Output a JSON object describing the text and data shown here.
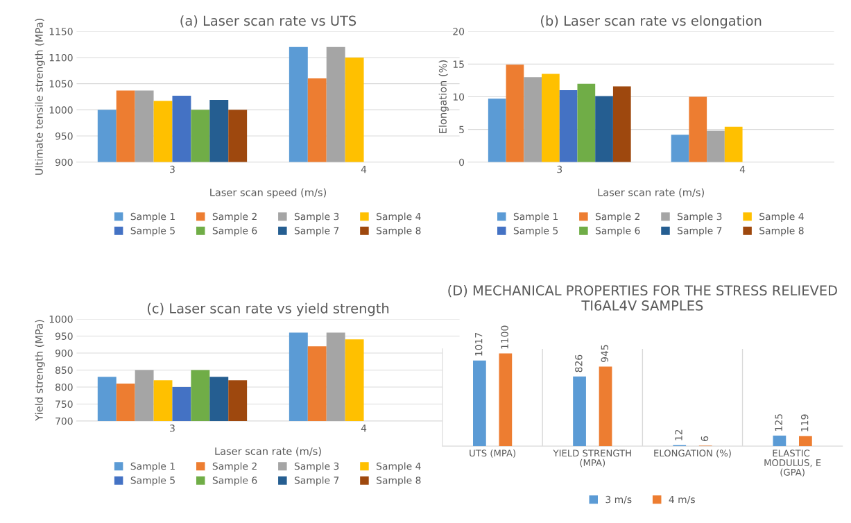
{
  "chart_data": [
    {
      "type": "bar",
      "title": "(a) Laser scan rate vs UTS",
      "xlabel": "Laser scan speed (m/s)",
      "ylabel": "Ultimate tensile strength (MPa)",
      "categories": [
        "3",
        "4"
      ],
      "ylim": [
        900,
        1150
      ],
      "yticks": [
        900,
        950,
        1000,
        1050,
        1100,
        1150
      ],
      "grid": "y",
      "legend": "bottom",
      "series": [
        {
          "name": "Sample 1",
          "color": "#5b9bd5",
          "values": [
            1000,
            1120
          ]
        },
        {
          "name": "Sample 2",
          "color": "#ed7d31",
          "values": [
            1037,
            1060
          ]
        },
        {
          "name": "Sample 3",
          "color": "#a5a5a5",
          "values": [
            1037,
            1120
          ]
        },
        {
          "name": "Sample 4",
          "color": "#ffc000",
          "values": [
            1017,
            1100
          ]
        },
        {
          "name": "Sample 5",
          "color": "#4472c4",
          "values": [
            1027,
            null
          ]
        },
        {
          "name": "Sample 6",
          "color": "#70ad47",
          "values": [
            1000,
            null
          ]
        },
        {
          "name": "Sample 7",
          "color": "#255e91",
          "values": [
            1019,
            null
          ]
        },
        {
          "name": "Sample 8",
          "color": "#9e480e",
          "values": [
            1000,
            null
          ]
        }
      ]
    },
    {
      "type": "bar",
      "title": "(b) Laser scan rate vs elongation",
      "xlabel": "Laser scan rate (m/s)",
      "ylabel": "Elongation (%)",
      "categories": [
        "3",
        "4"
      ],
      "ylim": [
        0,
        20
      ],
      "yticks": [
        0,
        5,
        10,
        15,
        20
      ],
      "grid": "y",
      "legend": "bottom",
      "series": [
        {
          "name": "Sample 1",
          "color": "#5b9bd5",
          "values": [
            9.7,
            4.2
          ]
        },
        {
          "name": "Sample 2",
          "color": "#ed7d31",
          "values": [
            14.9,
            10
          ]
        },
        {
          "name": "Sample 3",
          "color": "#a5a5a5",
          "values": [
            13,
            4.8
          ]
        },
        {
          "name": "Sample 4",
          "color": "#ffc000",
          "values": [
            13.5,
            5.4
          ]
        },
        {
          "name": "Sample 5",
          "color": "#4472c4",
          "values": [
            11,
            null
          ]
        },
        {
          "name": "Sample 6",
          "color": "#70ad47",
          "values": [
            12,
            null
          ]
        },
        {
          "name": "Sample 7",
          "color": "#255e91",
          "values": [
            10.1,
            null
          ]
        },
        {
          "name": "Sample 8",
          "color": "#9e480e",
          "values": [
            11.6,
            null
          ]
        }
      ]
    },
    {
      "type": "bar",
      "title": "(c) Laser scan rate vs yield strength",
      "xlabel": "Laser scan rate (m/s)",
      "ylabel": "Yield strength (MPa)",
      "categories": [
        "3",
        "4"
      ],
      "ylim": [
        700,
        1000
      ],
      "yticks": [
        700,
        750,
        800,
        850,
        900,
        950,
        1000
      ],
      "grid": "y",
      "legend": "bottom",
      "series": [
        {
          "name": "Sample 1",
          "color": "#5b9bd5",
          "values": [
            830,
            960
          ]
        },
        {
          "name": "Sample 2",
          "color": "#ed7d31",
          "values": [
            810,
            920
          ]
        },
        {
          "name": "Sample 3",
          "color": "#a5a5a5",
          "values": [
            850,
            960
          ]
        },
        {
          "name": "Sample 4",
          "color": "#ffc000",
          "values": [
            820,
            940
          ]
        },
        {
          "name": "Sample 5",
          "color": "#4472c4",
          "values": [
            800,
            null
          ]
        },
        {
          "name": "Sample 6",
          "color": "#70ad47",
          "values": [
            850,
            null
          ]
        },
        {
          "name": "Sample 7",
          "color": "#255e91",
          "values": [
            830,
            null
          ]
        },
        {
          "name": "Sample 8",
          "color": "#9e480e",
          "values": [
            820,
            null
          ]
        }
      ]
    },
    {
      "type": "bar",
      "title": "(D) MECHANICAL PROPERTIES FOR THE STRESS RELIEVED TI6AL4V SAMPLES",
      "categories": [
        "UTS (MPA)",
        "YIELD STRENGTH (MPA)",
        "ELONGATION (%)",
        "ELASTIC MODULUS, E (GPA)"
      ],
      "tick_labels": "x",
      "data_labels": true,
      "legend": "bottom",
      "series": [
        {
          "name": "3 m/s",
          "color": "#5b9bd5",
          "values": [
            1017,
            826,
            12,
            125
          ]
        },
        {
          "name": "4 m/s",
          "color": "#ed7d31",
          "values": [
            1100,
            945,
            6,
            119
          ]
        }
      ]
    }
  ]
}
